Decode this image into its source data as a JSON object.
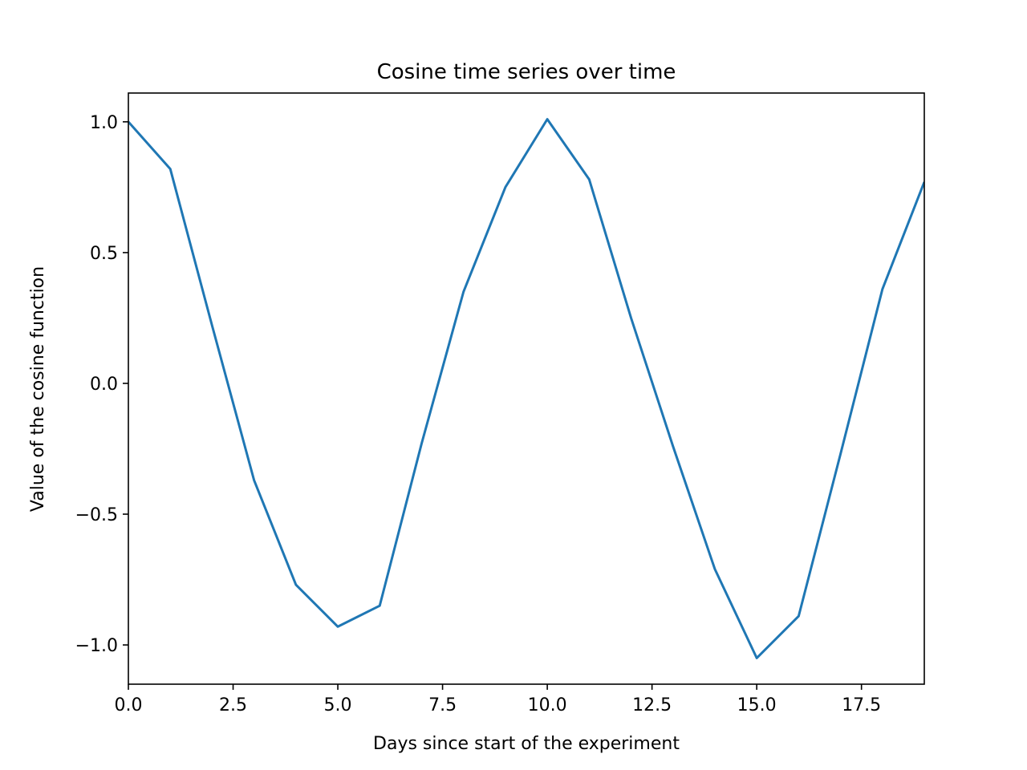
{
  "chart_data": {
    "type": "line",
    "title": "Cosine time series over time",
    "xlabel": "Days since start of the experiment",
    "ylabel": "Value of the cosine function",
    "xlim": [
      0,
      19
    ],
    "ylim": [
      -1.15,
      1.11
    ],
    "x_ticks": [
      0.0,
      2.5,
      5.0,
      7.5,
      10.0,
      12.5,
      15.0,
      17.5
    ],
    "x_tick_labels": [
      "0.0",
      "2.5",
      "5.0",
      "7.5",
      "10.0",
      "12.5",
      "15.0",
      "17.5"
    ],
    "y_ticks": [
      1.0,
      0.5,
      0.0,
      -0.5,
      -1.0
    ],
    "y_tick_labels": [
      "1.0",
      "0.5",
      "0.0",
      "−0.5",
      "−1.0"
    ],
    "grid": false,
    "series": [
      {
        "color": "#1f77b4",
        "x": [
          0,
          1,
          2,
          3,
          4,
          5,
          6,
          7,
          8,
          9,
          10,
          11,
          12,
          13,
          14,
          15,
          16,
          17,
          18,
          19
        ],
        "y": [
          1.0,
          0.82,
          0.22,
          -0.37,
          -0.77,
          -0.93,
          -0.85,
          -0.23,
          0.35,
          0.75,
          1.01,
          0.78,
          0.25,
          -0.24,
          -0.71,
          -1.05,
          -0.89,
          -0.27,
          0.36,
          0.77
        ]
      }
    ]
  }
}
